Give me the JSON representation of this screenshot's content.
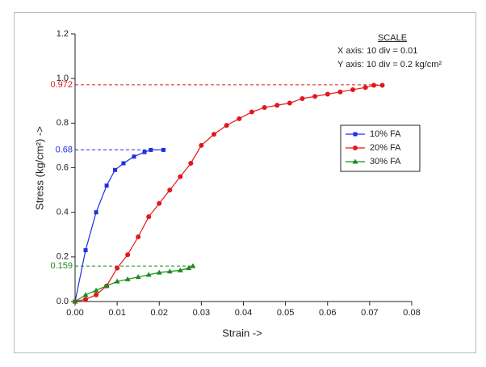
{
  "chart_data": {
    "type": "line",
    "xlabel": "Strain ->",
    "ylabel": "Stress (kg/cm²) ->",
    "annotations": [
      "SCALE",
      "X axis: 10 div = 0.01",
      "Y axis: 10 div = 0.2 kg/cm²"
    ],
    "xlim": [
      0,
      0.08
    ],
    "ylim": [
      0,
      1.2
    ],
    "xticks": [
      {
        "value": 0,
        "label": "0.00"
      },
      {
        "value": 0.01,
        "label": "0.01"
      },
      {
        "value": 0.02,
        "label": "0.02"
      },
      {
        "value": 0.03,
        "label": "0.03"
      },
      {
        "value": 0.04,
        "label": "0.04"
      },
      {
        "value": 0.05,
        "label": "0.05"
      },
      {
        "value": 0.06,
        "label": "0.06"
      },
      {
        "value": 0.07,
        "label": "0.07"
      },
      {
        "value": 0.08,
        "label": "0.08"
      }
    ],
    "yticks": [
      {
        "value": 0,
        "label": "0.0"
      },
      0.2,
      0.4,
      0.6,
      0.8,
      {
        "value": 1,
        "label": "1.0"
      },
      1.2
    ],
    "legend": "right",
    "series": [
      {
        "name": "10% FA",
        "color": "#1f2fe0",
        "marker": "square",
        "x": [
          0,
          0.0025,
          0.005,
          0.0075,
          0.0095,
          0.0115,
          0.014,
          0.0165,
          0.018,
          0.021
        ],
        "values": [
          0,
          0.23,
          0.4,
          0.52,
          0.59,
          0.62,
          0.65,
          0.67,
          0.68,
          0.68
        ]
      },
      {
        "name": "20% FA",
        "color": "#e3171b",
        "marker": "circle",
        "x": [
          0,
          0.0025,
          0.005,
          0.0075,
          0.01,
          0.0125,
          0.015,
          0.0175,
          0.02,
          0.0225,
          0.025,
          0.0275,
          0.03,
          0.033,
          0.036,
          0.039,
          0.042,
          0.045,
          0.048,
          0.051,
          0.054,
          0.057,
          0.06,
          0.063,
          0.066,
          0.069,
          0.071,
          0.073
        ],
        "values": [
          0,
          0.01,
          0.03,
          0.07,
          0.15,
          0.21,
          0.29,
          0.38,
          0.44,
          0.5,
          0.56,
          0.62,
          0.7,
          0.75,
          0.79,
          0.82,
          0.85,
          0.87,
          0.88,
          0.89,
          0.91,
          0.92,
          0.93,
          0.94,
          0.95,
          0.96,
          0.97,
          0.97
        ]
      },
      {
        "name": "30% FA",
        "color": "#1b8a1b",
        "marker": "triangle",
        "x": [
          0,
          0.0025,
          0.005,
          0.0075,
          0.01,
          0.0125,
          0.015,
          0.0175,
          0.02,
          0.0225,
          0.025,
          0.027,
          0.028
        ],
        "values": [
          0,
          0.03,
          0.05,
          0.07,
          0.09,
          0.1,
          0.11,
          0.12,
          0.13,
          0.135,
          0.14,
          0.15,
          0.159
        ]
      }
    ],
    "reference_lines": [
      {
        "value": 0.972,
        "color": "#e3171b"
      },
      {
        "value": 0.68,
        "color": "#1f2fe0"
      },
      {
        "value": 0.159,
        "color": "#1b8a1b"
      }
    ]
  }
}
